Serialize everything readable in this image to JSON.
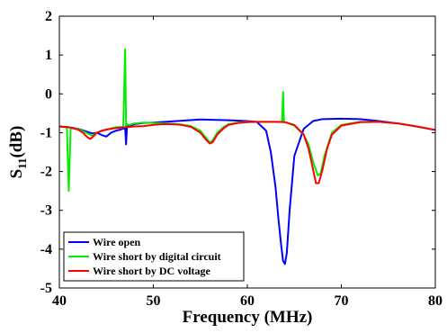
{
  "chart_data": {
    "type": "line",
    "title": "",
    "xlabel": "Frequency (MHz)",
    "ylabel": {
      "base": "S",
      "sub": "11",
      "rest": "(dB)"
    },
    "xlim": [
      40,
      80
    ],
    "ylim": [
      -5,
      2
    ],
    "xticks": [
      40,
      50,
      60,
      70,
      80
    ],
    "yticks": [
      2,
      1,
      0,
      -1,
      -2,
      -3,
      -4,
      -5
    ],
    "grid": false,
    "legend_position": "bottom-left",
    "series": [
      {
        "name": "Wire open",
        "color": "#0000ff",
        "x": [
          40,
          41,
          42,
          43,
          43.5,
          44,
          44.5,
          45,
          45.5,
          46,
          46.5,
          47,
          47.1,
          47.2,
          47.4,
          48,
          49,
          50,
          52,
          55,
          58,
          60,
          61,
          62,
          62.5,
          63,
          63.3,
          63.6,
          63.8,
          64,
          64.2,
          64.5,
          65,
          66,
          67,
          68,
          70,
          72,
          74,
          76,
          78,
          80
        ],
        "y": [
          -0.84,
          -0.86,
          -0.9,
          -0.98,
          -1.02,
          -1.0,
          -1.06,
          -1.1,
          -1.0,
          -0.95,
          -0.92,
          -0.88,
          -1.3,
          -0.82,
          -0.83,
          -0.78,
          -0.75,
          -0.74,
          -0.71,
          -0.66,
          -0.68,
          -0.7,
          -0.72,
          -0.95,
          -1.5,
          -2.4,
          -3.2,
          -3.9,
          -4.3,
          -4.38,
          -4.1,
          -3.0,
          -1.6,
          -0.9,
          -0.7,
          -0.65,
          -0.64,
          -0.65,
          -0.7,
          -0.76,
          -0.84,
          -0.93
        ]
      },
      {
        "name": "Wire short by digital circuit",
        "color": "#00ee00",
        "x": [
          40,
          40.8,
          41,
          41.2,
          42,
          43,
          43.5,
          44,
          45,
          46,
          46.8,
          47,
          47.1,
          47.2,
          47.4,
          48,
          49,
          50,
          51,
          52,
          53,
          54,
          55,
          55.5,
          56,
          56.3,
          56.8,
          57.5,
          58,
          59,
          60,
          61,
          62,
          63,
          63.7,
          63.8,
          63.9,
          64.2,
          65,
          66,
          66.5,
          67,
          67.5,
          67.8,
          68.2,
          69,
          70,
          72,
          74,
          76,
          78,
          80
        ],
        "y": [
          -0.84,
          -0.87,
          -2.5,
          -0.88,
          -0.9,
          -1.02,
          -1.08,
          -1.0,
          -0.92,
          -0.86,
          -0.85,
          1.15,
          -0.85,
          -0.78,
          -0.8,
          -0.76,
          -0.74,
          -0.75,
          -0.76,
          -0.77,
          -0.79,
          -0.83,
          -0.95,
          -1.1,
          -1.25,
          -1.2,
          -1.0,
          -0.85,
          -0.78,
          -0.74,
          -0.72,
          -0.72,
          -0.72,
          -0.72,
          -0.72,
          0.05,
          -0.72,
          -0.74,
          -0.82,
          -1.05,
          -1.3,
          -1.75,
          -2.1,
          -2.05,
          -1.6,
          -1.0,
          -0.8,
          -0.72,
          -0.72,
          -0.76,
          -0.84,
          -0.93
        ]
      },
      {
        "name": "Wire short by DC voltage",
        "color": "#ff0000",
        "x": [
          40,
          41,
          42,
          42.5,
          43,
          43.3,
          43.6,
          44,
          44.5,
          45,
          46,
          47,
          48,
          49,
          50,
          51,
          52,
          53,
          54,
          55,
          55.5,
          56,
          56.3,
          56.8,
          57.5,
          58,
          59,
          60,
          61,
          62,
          63,
          64,
          65,
          66,
          66.5,
          67,
          67.3,
          67.6,
          68,
          68.5,
          69,
          70,
          72,
          74,
          76,
          78,
          80
        ],
        "y": [
          -0.84,
          -0.86,
          -0.92,
          -1.0,
          -1.12,
          -1.16,
          -1.1,
          -1.0,
          -0.95,
          -0.92,
          -0.88,
          -0.86,
          -0.84,
          -0.83,
          -0.8,
          -0.78,
          -0.78,
          -0.8,
          -0.85,
          -1.0,
          -1.15,
          -1.28,
          -1.25,
          -1.05,
          -0.88,
          -0.8,
          -0.75,
          -0.73,
          -0.72,
          -0.72,
          -0.72,
          -0.73,
          -0.8,
          -1.05,
          -1.4,
          -1.95,
          -2.3,
          -2.3,
          -1.95,
          -1.4,
          -1.05,
          -0.82,
          -0.73,
          -0.72,
          -0.76,
          -0.84,
          -0.93
        ]
      }
    ]
  }
}
